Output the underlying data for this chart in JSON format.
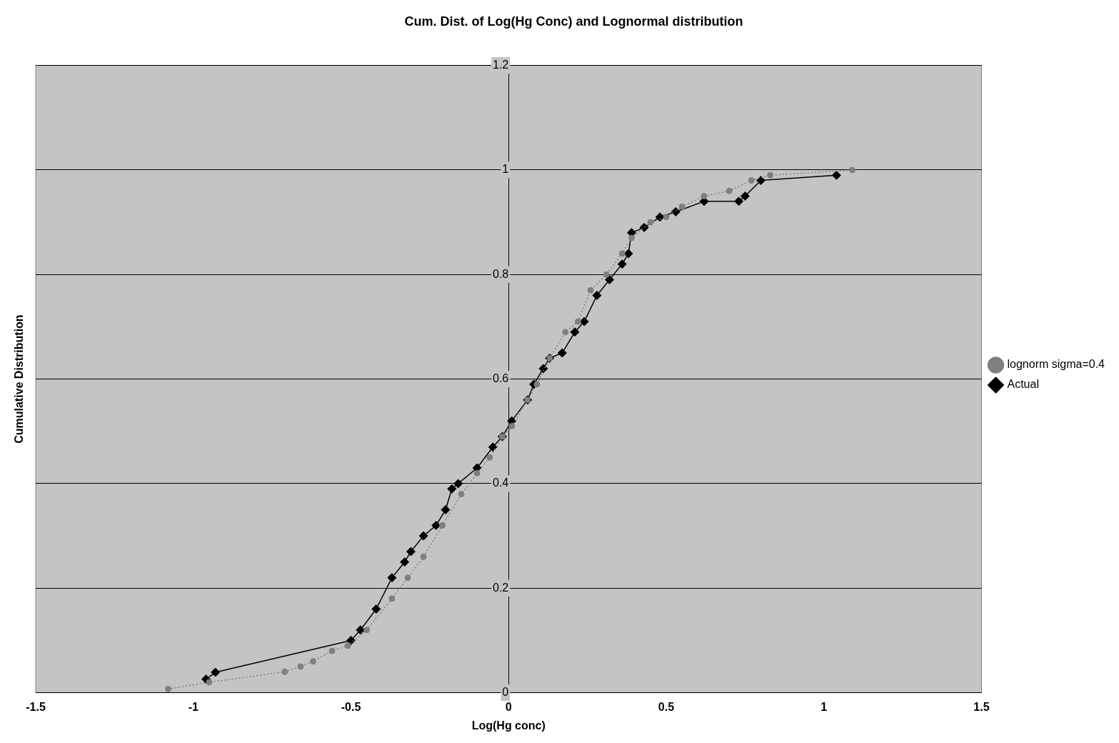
{
  "chart_data": {
    "type": "line",
    "title": "Cum. Dist. of Log(Hg Conc) and Lognormal distribution",
    "xlabel": "Log(Hg conc)",
    "ylabel": "Cumulative Distribution",
    "xlim": [
      -1.5,
      1.5
    ],
    "xticks": [
      -1.5,
      -1,
      -0.5,
      0,
      0.5,
      1,
      1.5
    ],
    "ylim": [
      0,
      1.2
    ],
    "yticks": [
      0,
      0.2,
      0.4,
      0.6,
      0.8,
      1,
      1.2
    ],
    "grid": "y",
    "legend": "right",
    "series": [
      {
        "name": "Actual",
        "color": "#000000",
        "marker": "diamond",
        "line_style": "solid",
        "x": [
          -0.96,
          -0.93,
          -0.5,
          -0.47,
          -0.42,
          -0.37,
          -0.33,
          -0.31,
          -0.27,
          -0.23,
          -0.2,
          -0.18,
          -0.16,
          -0.1,
          -0.05,
          -0.02,
          0.01,
          0.06,
          0.08,
          0.11,
          0.13,
          0.17,
          0.21,
          0.24,
          0.28,
          0.32,
          0.36,
          0.38,
          0.39,
          0.43,
          0.48,
          0.53,
          0.62,
          0.73,
          0.75,
          0.8,
          1.04
        ],
        "values": [
          0.026,
          0.039,
          0.1,
          0.12,
          0.16,
          0.22,
          0.25,
          0.27,
          0.3,
          0.32,
          0.35,
          0.39,
          0.4,
          0.43,
          0.47,
          0.49,
          0.52,
          0.56,
          0.59,
          0.62,
          0.64,
          0.65,
          0.69,
          0.71,
          0.76,
          0.79,
          0.82,
          0.84,
          0.88,
          0.89,
          0.91,
          0.92,
          0.94,
          0.94,
          0.95,
          0.98,
          0.99
        ]
      },
      {
        "name": "lognorm sigma=0.4",
        "color": "#7f7f7f",
        "marker": "circle",
        "line_style": "dotted",
        "x": [
          -1.08,
          -0.95,
          -0.71,
          -0.66,
          -0.62,
          -0.56,
          -0.51,
          -0.45,
          -0.37,
          -0.32,
          -0.27,
          -0.21,
          -0.15,
          -0.1,
          -0.06,
          -0.02,
          0.01,
          0.06,
          0.09,
          0.13,
          0.18,
          0.22,
          0.26,
          0.31,
          0.36,
          0.39,
          0.45,
          0.5,
          0.55,
          0.62,
          0.7,
          0.77,
          0.83,
          1.09
        ],
        "values": [
          0.007,
          0.02,
          0.04,
          0.05,
          0.06,
          0.08,
          0.09,
          0.12,
          0.18,
          0.22,
          0.26,
          0.32,
          0.38,
          0.42,
          0.45,
          0.49,
          0.51,
          0.56,
          0.59,
          0.64,
          0.69,
          0.71,
          0.77,
          0.8,
          0.84,
          0.87,
          0.9,
          0.91,
          0.93,
          0.95,
          0.96,
          0.98,
          0.99,
          1.0
        ]
      }
    ]
  }
}
